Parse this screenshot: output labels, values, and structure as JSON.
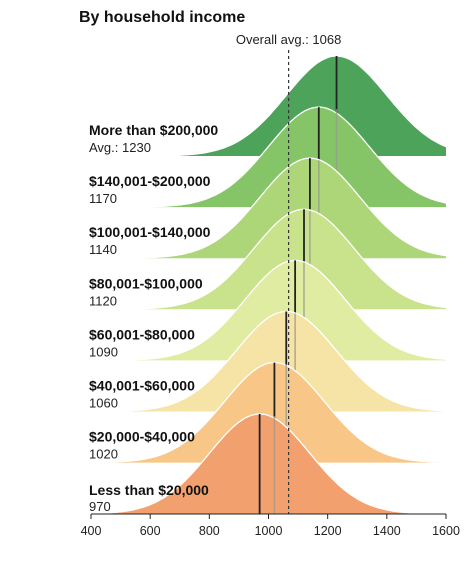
{
  "chart_data": {
    "type": "area",
    "title": "By household income",
    "overall_avg_label": "Overall avg.: 1068",
    "overall_avg": 1068,
    "xlim": [
      400,
      1600
    ],
    "x_ticks": [
      "400",
      "600",
      "800",
      "1000",
      "1200",
      "1400",
      "1600"
    ],
    "x_tick_values": [
      400,
      600,
      800,
      1000,
      1200,
      1400,
      1600
    ],
    "series": [
      {
        "name": "More than $200,000",
        "value_label": "Avg.: 1230",
        "mean": 1230,
        "color": "#4ea35a"
      },
      {
        "name": "$140,001-$200,000",
        "value_label": "1170",
        "mean": 1170,
        "color": "#86c567"
      },
      {
        "name": "$100,001-$140,000",
        "value_label": "1140",
        "mean": 1140,
        "color": "#acd678"
      },
      {
        "name": "$80,001-$100,000",
        "value_label": "1120",
        "mean": 1120,
        "color": "#c9e38c"
      },
      {
        "name": "$60,001-$80,000",
        "value_label": "1090",
        "mean": 1090,
        "color": "#e0eca2"
      },
      {
        "name": "$40,001-$60,000",
        "value_label": "1060",
        "mean": 1060,
        "color": "#f6e4a6"
      },
      {
        "name": "$20,000-$40,000",
        "value_label": "1020",
        "mean": 1020,
        "color": "#f8c787"
      },
      {
        "name": "Less than $20,000",
        "value_label": "970",
        "mean": 970,
        "color": "#f2a06e"
      }
    ]
  }
}
